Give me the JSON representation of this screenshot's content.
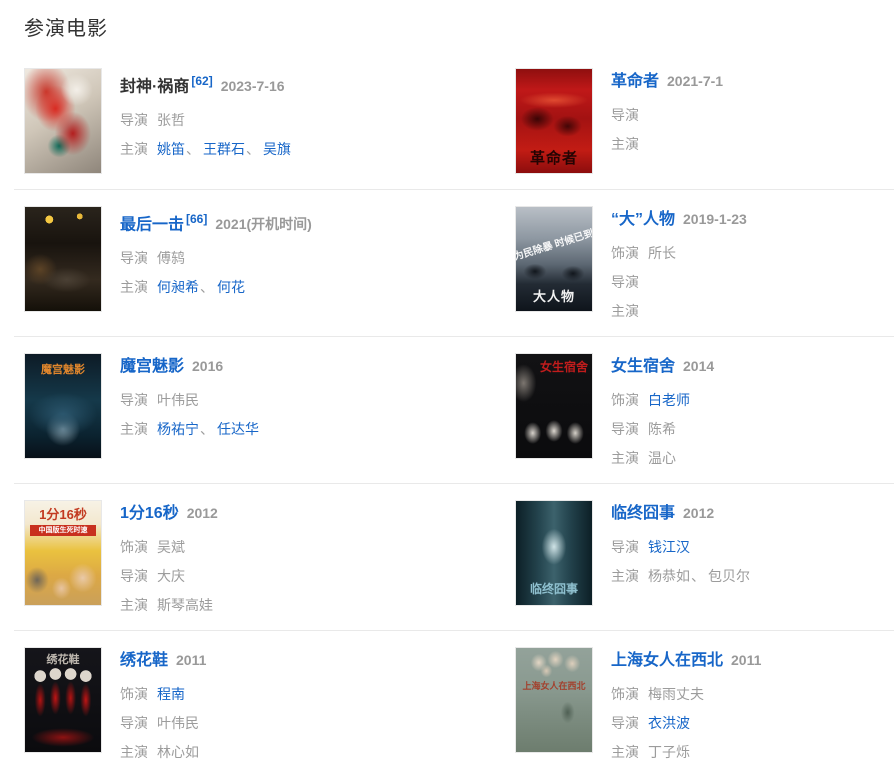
{
  "section": {
    "title": "参演电影"
  },
  "colors": {
    "link_blue": "#1766c8",
    "muted_gray": "#9c9c9c",
    "title_dark": "#333333",
    "divider": "#e9e9e9",
    "background": "#ffffff"
  },
  "movies": [
    {
      "title": "封神·祸商",
      "title_is_link": false,
      "ref": "[62]",
      "date": "2023-7-16",
      "poster": {
        "art": "fengshen",
        "text": "",
        "overlay": "",
        "subtext": ""
      },
      "credits": [
        {
          "label": "导演",
          "names": [
            {
              "text": "张哲",
              "link": false
            }
          ]
        },
        {
          "label": "主演",
          "names": [
            {
              "text": "姚笛",
              "link": true
            },
            {
              "text": "王群石",
              "link": true
            },
            {
              "text": "吴旗",
              "link": true
            }
          ]
        }
      ]
    },
    {
      "title": "革命者",
      "title_is_link": true,
      "ref": "",
      "date": "2021-7-1",
      "poster": {
        "art": "geming",
        "text": "革命者",
        "overlay": "",
        "subtext": ""
      },
      "credits": [
        {
          "label": "导演",
          "names": []
        },
        {
          "label": "主演",
          "names": []
        }
      ]
    },
    {
      "title": "最后一击",
      "title_is_link": true,
      "ref": "[66]",
      "date": "2021(开机时间)",
      "poster": {
        "art": "zuihou",
        "text": "",
        "overlay": "",
        "subtext": ""
      },
      "credits": [
        {
          "label": "导演",
          "names": [
            {
              "text": "傅鸫",
              "link": false
            }
          ]
        },
        {
          "label": "主演",
          "names": [
            {
              "text": "何昶希",
              "link": true
            },
            {
              "text": "何花",
              "link": true
            }
          ]
        }
      ]
    },
    {
      "title": "“大”人物",
      "title_is_link": true,
      "ref": "",
      "date": "2019-1-23",
      "poster": {
        "art": "daren",
        "text": "大人物",
        "overlay": "为民除暴 时候已到",
        "subtext": ""
      },
      "credits": [
        {
          "label": "饰演",
          "names": [
            {
              "text": "所长",
              "link": false
            }
          ]
        },
        {
          "label": "导演",
          "names": []
        },
        {
          "label": "主演",
          "names": []
        }
      ]
    },
    {
      "title": "魔宫魅影",
      "title_is_link": true,
      "ref": "",
      "date": "2016",
      "poster": {
        "art": "mogong",
        "text": "魔宫魅影",
        "overlay": "",
        "subtext": ""
      },
      "credits": [
        {
          "label": "导演",
          "names": [
            {
              "text": "叶伟民",
              "link": false
            }
          ]
        },
        {
          "label": "主演",
          "names": [
            {
              "text": "杨祐宁",
              "link": true
            },
            {
              "text": "任达华",
              "link": true
            }
          ]
        }
      ]
    },
    {
      "title": "女生宿舍",
      "title_is_link": true,
      "ref": "",
      "date": "2014",
      "poster": {
        "art": "nvsheng",
        "text": "女生宿舍",
        "overlay": "",
        "subtext": ""
      },
      "credits": [
        {
          "label": "饰演",
          "names": [
            {
              "text": "白老师",
              "link": true
            }
          ]
        },
        {
          "label": "导演",
          "names": [
            {
              "text": "陈希",
              "link": false
            }
          ]
        },
        {
          "label": "主演",
          "names": [
            {
              "text": "温心",
              "link": false
            }
          ]
        }
      ]
    },
    {
      "title": "1分16秒",
      "title_is_link": true,
      "ref": "",
      "date": "2012",
      "poster": {
        "art": "yifen",
        "text": "1分16秒",
        "overlay": "",
        "subtext": "中国版生死时速"
      },
      "credits": [
        {
          "label": "饰演",
          "names": [
            {
              "text": "吴斌",
              "link": false
            }
          ]
        },
        {
          "label": "导演",
          "names": [
            {
              "text": "大庆",
              "link": false
            }
          ]
        },
        {
          "label": "主演",
          "names": [
            {
              "text": "斯琴高娃",
              "link": false
            }
          ]
        }
      ]
    },
    {
      "title": "临终囧事",
      "title_is_link": true,
      "ref": "",
      "date": "2012",
      "poster": {
        "art": "linzhong",
        "text": "临终囧事",
        "overlay": "",
        "subtext": ""
      },
      "credits": [
        {
          "label": "导演",
          "names": [
            {
              "text": "钱江汉",
              "link": true
            }
          ]
        },
        {
          "label": "主演",
          "names": [
            {
              "text": "杨恭如",
              "link": false
            },
            {
              "text": "包贝尔",
              "link": false
            }
          ]
        }
      ]
    },
    {
      "title": "绣花鞋",
      "title_is_link": true,
      "ref": "",
      "date": "2011",
      "poster": {
        "art": "xiuhua",
        "text": "绣花鞋",
        "overlay": "",
        "subtext": ""
      },
      "credits": [
        {
          "label": "饰演",
          "names": [
            {
              "text": "程南",
              "link": true
            }
          ]
        },
        {
          "label": "导演",
          "names": [
            {
              "text": "叶伟民",
              "link": false
            }
          ]
        },
        {
          "label": "主演",
          "names": [
            {
              "text": "林心如",
              "link": false
            }
          ]
        }
      ]
    },
    {
      "title": "上海女人在西北",
      "title_is_link": true,
      "ref": "",
      "date": "2011",
      "poster": {
        "art": "shanghai",
        "text": "上海女人在西北",
        "overlay": "",
        "subtext": ""
      },
      "credits": [
        {
          "label": "饰演",
          "names": [
            {
              "text": "梅雨丈夫",
              "link": false
            }
          ]
        },
        {
          "label": "导演",
          "names": [
            {
              "text": "衣洪波",
              "link": true
            }
          ]
        },
        {
          "label": "主演",
          "names": [
            {
              "text": "丁子烁",
              "link": false
            }
          ]
        }
      ]
    }
  ]
}
